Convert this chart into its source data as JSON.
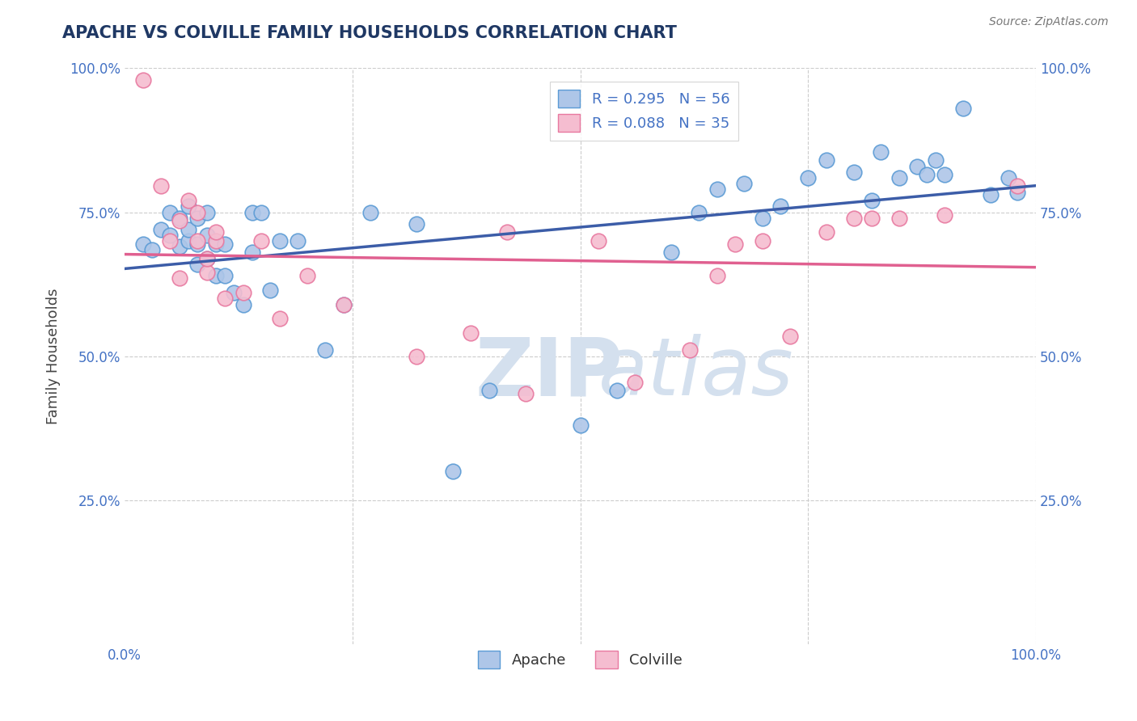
{
  "title": "APACHE VS COLVILLE FAMILY HOUSEHOLDS CORRELATION CHART",
  "source_text": "Source: ZipAtlas.com",
  "ylabel": "Family Households",
  "xlim": [
    0.0,
    1.0
  ],
  "ylim": [
    0.0,
    1.0
  ],
  "legend_r1": "R = 0.295",
  "legend_n1": "N = 56",
  "legend_r2": "R = 0.088",
  "legend_n2": "N = 35",
  "apache_color": "#aec6e8",
  "apache_edge": "#5b9bd5",
  "colville_color": "#f5bdd0",
  "colville_edge": "#e879a0",
  "trendline_apache": "#3c5da8",
  "trendline_colville": "#e06090",
  "watermark_color": "#d4e0ee",
  "apache_x": [
    0.02,
    0.03,
    0.04,
    0.05,
    0.05,
    0.06,
    0.06,
    0.07,
    0.07,
    0.07,
    0.08,
    0.08,
    0.08,
    0.09,
    0.09,
    0.09,
    0.1,
    0.1,
    0.11,
    0.11,
    0.12,
    0.13,
    0.14,
    0.14,
    0.15,
    0.16,
    0.17,
    0.19,
    0.22,
    0.24,
    0.27,
    0.32,
    0.36,
    0.4,
    0.5,
    0.54,
    0.6,
    0.63,
    0.65,
    0.68,
    0.7,
    0.72,
    0.75,
    0.77,
    0.8,
    0.82,
    0.83,
    0.85,
    0.87,
    0.88,
    0.89,
    0.9,
    0.92,
    0.95,
    0.97,
    0.98
  ],
  "apache_y": [
    0.695,
    0.685,
    0.72,
    0.75,
    0.71,
    0.69,
    0.74,
    0.7,
    0.72,
    0.76,
    0.66,
    0.695,
    0.74,
    0.67,
    0.71,
    0.75,
    0.64,
    0.695,
    0.64,
    0.695,
    0.61,
    0.59,
    0.75,
    0.68,
    0.75,
    0.615,
    0.7,
    0.7,
    0.51,
    0.59,
    0.75,
    0.73,
    0.3,
    0.44,
    0.38,
    0.44,
    0.68,
    0.75,
    0.79,
    0.8,
    0.74,
    0.76,
    0.81,
    0.84,
    0.82,
    0.77,
    0.855,
    0.81,
    0.83,
    0.815,
    0.84,
    0.815,
    0.93,
    0.78,
    0.81,
    0.785
  ],
  "colville_x": [
    0.02,
    0.04,
    0.05,
    0.06,
    0.06,
    0.07,
    0.08,
    0.08,
    0.09,
    0.09,
    0.1,
    0.1,
    0.11,
    0.13,
    0.15,
    0.17,
    0.2,
    0.24,
    0.32,
    0.38,
    0.42,
    0.44,
    0.52,
    0.56,
    0.62,
    0.65,
    0.67,
    0.7,
    0.73,
    0.77,
    0.8,
    0.82,
    0.85,
    0.9,
    0.98
  ],
  "colville_y": [
    0.98,
    0.795,
    0.7,
    0.635,
    0.735,
    0.77,
    0.7,
    0.75,
    0.645,
    0.67,
    0.7,
    0.715,
    0.6,
    0.61,
    0.7,
    0.565,
    0.64,
    0.59,
    0.5,
    0.54,
    0.715,
    0.435,
    0.7,
    0.455,
    0.51,
    0.64,
    0.695,
    0.7,
    0.535,
    0.715,
    0.74,
    0.74,
    0.74,
    0.745,
    0.795
  ],
  "title_color": "#1f3864",
  "axis_color": "#4472c4",
  "label_color": "#444444",
  "grid_color": "#cccccc"
}
